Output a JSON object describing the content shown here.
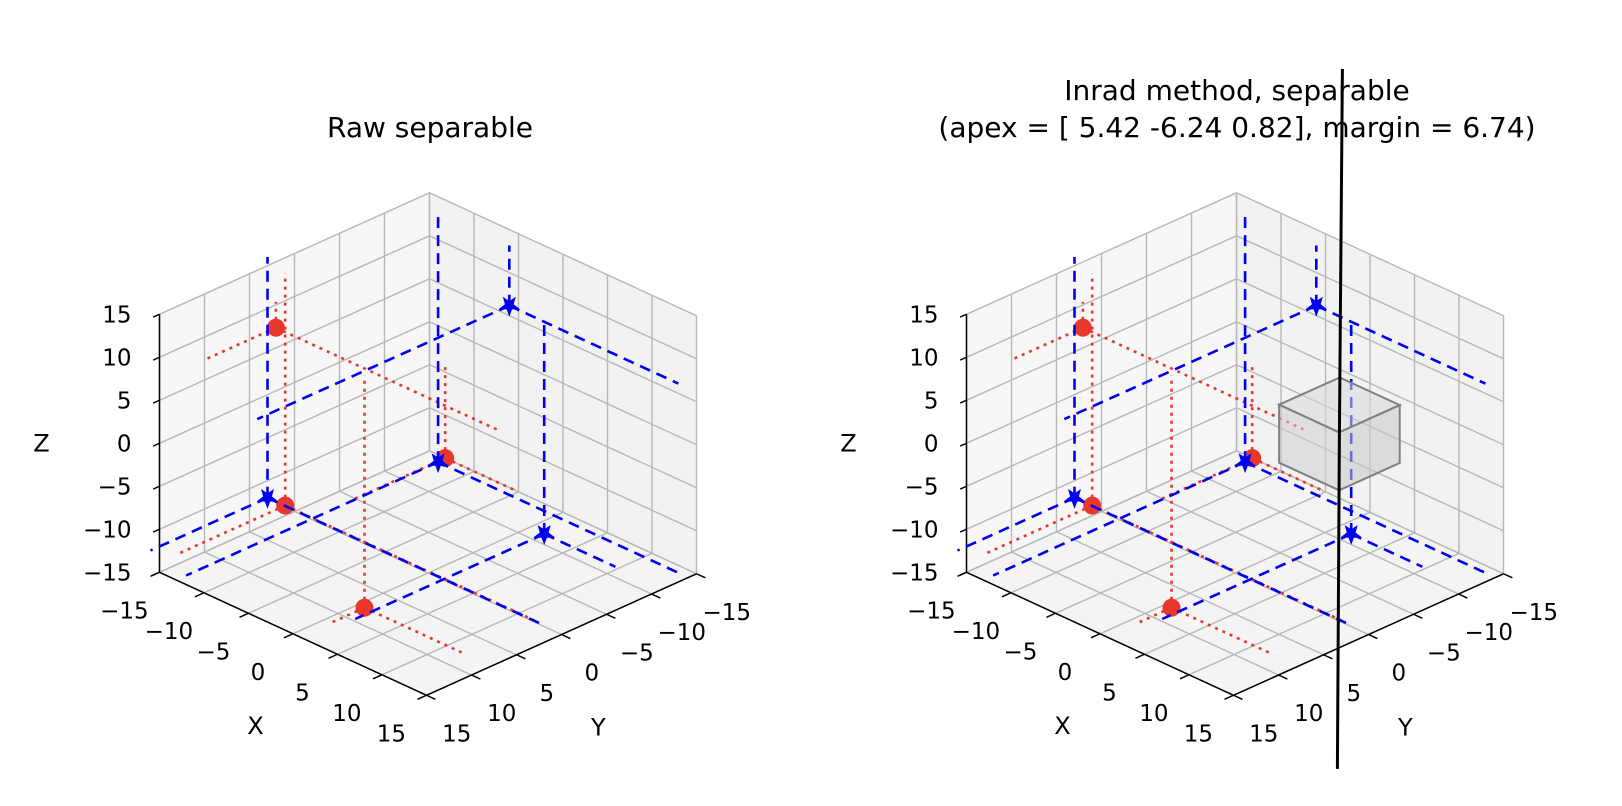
{
  "chart_data": [
    {
      "type": "scatter3d",
      "title": "Raw separable",
      "title_line2": "",
      "xlabel": "X",
      "ylabel": "Y",
      "zlabel": "Z",
      "xlim": [
        -15,
        15
      ],
      "ylim": [
        -15,
        15
      ],
      "zlim": [
        -15,
        15
      ],
      "ticks": [
        -15,
        -10,
        -5,
        0,
        5,
        10,
        15
      ],
      "tick_labels": [
        "−15",
        "−10",
        "−5",
        "0",
        "5",
        "10",
        "15"
      ],
      "grid": true,
      "series": [
        {
          "marker": "circle",
          "color": "#e8372c",
          "line_style": "dotted",
          "points": [
            [
              -9,
              8,
              13
            ],
            [
              -12,
              4,
              -11
            ],
            [
              8,
              6,
              5
            ],
            [
              5,
              12,
              -11
            ]
          ]
        },
        {
          "marker": "star",
          "color": "#0000ee",
          "line_style": "dashed",
          "points": [
            [
              -3,
              -12,
              9
            ],
            [
              -15,
              3,
              -12
            ],
            [
              8,
              -5,
              -9
            ],
            [
              -11,
              -12,
              -13
            ]
          ]
        }
      ]
    },
    {
      "type": "scatter3d",
      "title": "Inrad method, separable",
      "title_line2": "(apex = [ 5.42 -6.24  0.82], margin = 6.74)",
      "xlabel": "X",
      "ylabel": "Y",
      "zlabel": "Z",
      "xlim": [
        -15,
        15
      ],
      "ylim": [
        -15,
        15
      ],
      "zlim": [
        -15,
        15
      ],
      "ticks": [
        -15,
        -10,
        -5,
        0,
        5,
        10,
        15
      ],
      "tick_labels": [
        "−15",
        "−10",
        "−5",
        "0",
        "5",
        "10",
        "15"
      ],
      "grid": true,
      "apex": [
        5.42,
        -6.24,
        0.82
      ],
      "margin": 6.74,
      "series": [
        {
          "marker": "circle",
          "color": "#e8372c",
          "line_style": "dotted",
          "points": [
            [
              -9,
              8,
              13
            ],
            [
              -12,
              4,
              -11
            ],
            [
              8,
              6,
              5
            ],
            [
              5,
              12,
              -11
            ]
          ]
        },
        {
          "marker": "star",
          "color": "#0000ee",
          "line_style": "dashed",
          "points": [
            [
              -3,
              -12,
              9
            ],
            [
              -15,
              3,
              -12
            ],
            [
              8,
              -5,
              -9
            ],
            [
              -11,
              -12,
              -13
            ]
          ]
        }
      ]
    }
  ]
}
